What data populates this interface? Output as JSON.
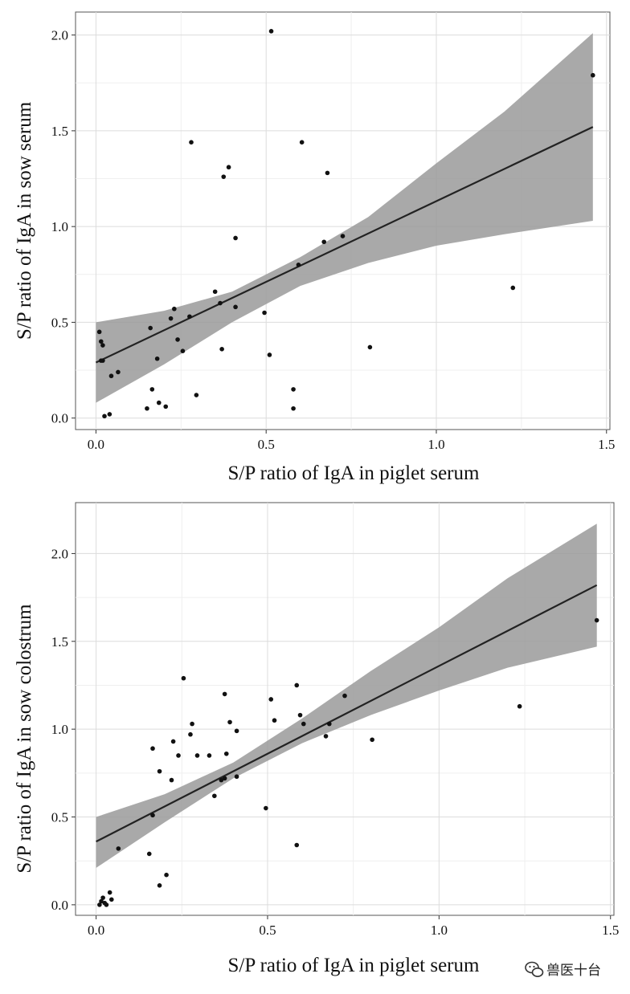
{
  "chart_data": [
    {
      "type": "scatter",
      "xlabel": "S/P ratio of IgA in piglet serum",
      "ylabel": "S/P ratio of IgA in sow serum",
      "xlim": [
        -0.06,
        1.51
      ],
      "ylim": [
        -0.06,
        2.12
      ],
      "x_ticks": [
        0.0,
        0.5,
        1.0,
        1.5
      ],
      "y_ticks": [
        0.0,
        0.5,
        1.0,
        1.5,
        2.0
      ],
      "grid": true,
      "points": [
        [
          0.01,
          0.45
        ],
        [
          0.015,
          0.4
        ],
        [
          0.02,
          0.38
        ],
        [
          0.015,
          0.3
        ],
        [
          0.02,
          0.3
        ],
        [
          0.045,
          0.22
        ],
        [
          0.065,
          0.24
        ],
        [
          0.025,
          0.01
        ],
        [
          0.04,
          0.02
        ],
        [
          0.16,
          0.47
        ],
        [
          0.18,
          0.31
        ],
        [
          0.22,
          0.52
        ],
        [
          0.23,
          0.57
        ],
        [
          0.24,
          0.41
        ],
        [
          0.255,
          0.35
        ],
        [
          0.275,
          0.53
        ],
        [
          0.165,
          0.15
        ],
        [
          0.185,
          0.08
        ],
        [
          0.205,
          0.06
        ],
        [
          0.15,
          0.05
        ],
        [
          0.295,
          0.12
        ],
        [
          0.28,
          1.44
        ],
        [
          0.35,
          0.66
        ],
        [
          0.365,
          0.6
        ],
        [
          0.37,
          0.36
        ],
        [
          0.375,
          1.26
        ],
        [
          0.39,
          1.31
        ],
        [
          0.41,
          0.58
        ],
        [
          0.41,
          0.94
        ],
        [
          0.495,
          0.55
        ],
        [
          0.515,
          2.02
        ],
        [
          0.51,
          0.33
        ],
        [
          0.58,
          0.15
        ],
        [
          0.58,
          0.05
        ],
        [
          0.595,
          0.8
        ],
        [
          0.605,
          1.44
        ],
        [
          0.67,
          0.92
        ],
        [
          0.68,
          1.28
        ],
        [
          0.725,
          0.95
        ],
        [
          0.805,
          0.37
        ],
        [
          1.225,
          0.68
        ],
        [
          1.46,
          1.79
        ]
      ],
      "fit_line": {
        "x": [
          0.0,
          1.46
        ],
        "y": [
          0.29,
          1.52
        ]
      },
      "confidence_band": {
        "x": [
          0.0,
          0.2,
          0.4,
          0.6,
          0.8,
          1.0,
          1.2,
          1.46
        ],
        "lower": [
          0.08,
          0.28,
          0.5,
          0.69,
          0.81,
          0.9,
          0.96,
          1.03
        ],
        "upper": [
          0.5,
          0.56,
          0.66,
          0.84,
          1.05,
          1.33,
          1.6,
          2.01
        ]
      }
    },
    {
      "type": "scatter",
      "xlabel": "S/P ratio of IgA in piglet serum",
      "ylabel": "S/P ratio of IgA in sow colostrum",
      "xlim": [
        -0.06,
        1.51
      ],
      "ylim": [
        -0.06,
        2.29
      ],
      "x_ticks": [
        0.0,
        0.5,
        1.0,
        1.5
      ],
      "y_ticks": [
        0.0,
        0.5,
        1.0,
        1.5,
        2.0
      ],
      "grid": true,
      "points": [
        [
          0.01,
          0.0
        ],
        [
          0.015,
          0.02
        ],
        [
          0.02,
          0.04
        ],
        [
          0.025,
          0.01
        ],
        [
          0.03,
          0.0
        ],
        [
          0.04,
          0.07
        ],
        [
          0.045,
          0.03
        ],
        [
          0.065,
          0.32
        ],
        [
          0.155,
          0.29
        ],
        [
          0.165,
          0.89
        ],
        [
          0.165,
          0.51
        ],
        [
          0.185,
          0.76
        ],
        [
          0.185,
          0.11
        ],
        [
          0.205,
          0.17
        ],
        [
          0.22,
          0.71
        ],
        [
          0.225,
          0.93
        ],
        [
          0.24,
          0.85
        ],
        [
          0.255,
          1.29
        ],
        [
          0.275,
          0.97
        ],
        [
          0.28,
          1.03
        ],
        [
          0.295,
          0.85
        ],
        [
          0.33,
          0.85
        ],
        [
          0.345,
          0.62
        ],
        [
          0.365,
          0.71
        ],
        [
          0.375,
          0.72
        ],
        [
          0.375,
          1.2
        ],
        [
          0.38,
          0.86
        ],
        [
          0.39,
          1.04
        ],
        [
          0.41,
          0.99
        ],
        [
          0.41,
          0.73
        ],
        [
          0.495,
          0.55
        ],
        [
          0.51,
          1.17
        ],
        [
          0.52,
          1.05
        ],
        [
          0.585,
          1.25
        ],
        [
          0.585,
          0.34
        ],
        [
          0.595,
          1.08
        ],
        [
          0.605,
          1.03
        ],
        [
          0.67,
          0.96
        ],
        [
          0.68,
          1.03
        ],
        [
          0.725,
          1.19
        ],
        [
          0.805,
          0.94
        ],
        [
          1.235,
          1.13
        ],
        [
          1.46,
          1.62
        ]
      ],
      "fit_line": {
        "x": [
          0.0,
          1.46
        ],
        "y": [
          0.36,
          1.82
        ]
      },
      "confidence_band": {
        "x": [
          0.0,
          0.2,
          0.4,
          0.6,
          0.8,
          1.0,
          1.2,
          1.46
        ],
        "lower": [
          0.21,
          0.47,
          0.72,
          0.92,
          1.08,
          1.22,
          1.35,
          1.47
        ],
        "upper": [
          0.5,
          0.63,
          0.81,
          1.06,
          1.33,
          1.58,
          1.86,
          2.17
        ]
      }
    }
  ],
  "watermark": {
    "text": "兽医十台",
    "icon": "wechat-icon"
  }
}
